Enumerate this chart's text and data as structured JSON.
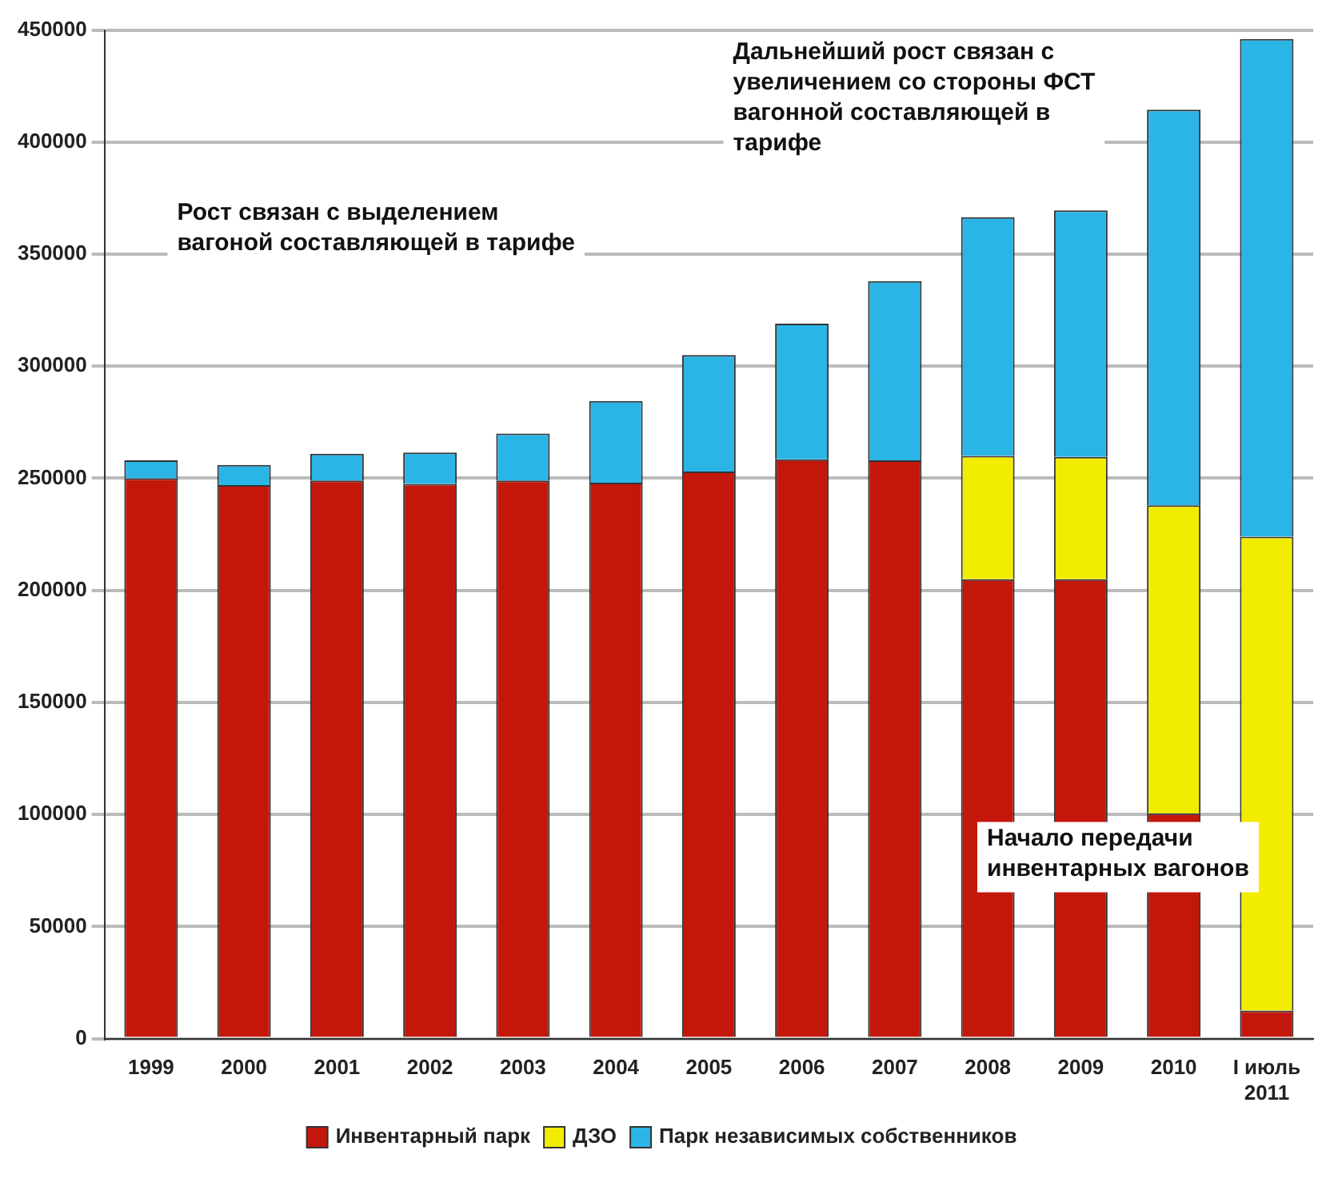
{
  "chart_data": {
    "type": "bar",
    "stacked": true,
    "categories": [
      "1999",
      "2000",
      "2001",
      "2002",
      "2003",
      "2004",
      "2005",
      "2006",
      "2007",
      "2008",
      "2009",
      "2010",
      "I июль 2011"
    ],
    "series": [
      {
        "name": "Инвентарный парк",
        "color": "#c4170c",
        "values": [
          250000,
          247000,
          249000,
          247500,
          249000,
          248000,
          253000,
          258500,
          258000,
          205000,
          205000,
          100500,
          12500
        ]
      },
      {
        "name": "ДЗО",
        "color": "#f2ec00",
        "values": [
          null,
          null,
          null,
          null,
          null,
          null,
          null,
          null,
          null,
          55000,
          54500,
          137500,
          211500
        ]
      },
      {
        "name": "Парк независимых собственников",
        "color": "#2bb5e6",
        "values": [
          8000,
          9000,
          12000,
          14000,
          21000,
          36500,
          52000,
          60500,
          80000,
          106500,
          110000,
          176500,
          222000
        ]
      }
    ],
    "ylim": [
      0,
      450000
    ],
    "yticks": [
      0,
      50000,
      100000,
      150000,
      200000,
      250000,
      300000,
      350000,
      400000,
      450000
    ],
    "grid": "y",
    "legend": "bottom",
    "annotations": [
      "Рост связан с выделением вагоной составляющей в тарифе",
      "Дальнейший рост связан с увеличением со стороны ФСТ вагонной составляющей в тарифе",
      "Начало передачи инвентарных вагонов"
    ]
  }
}
